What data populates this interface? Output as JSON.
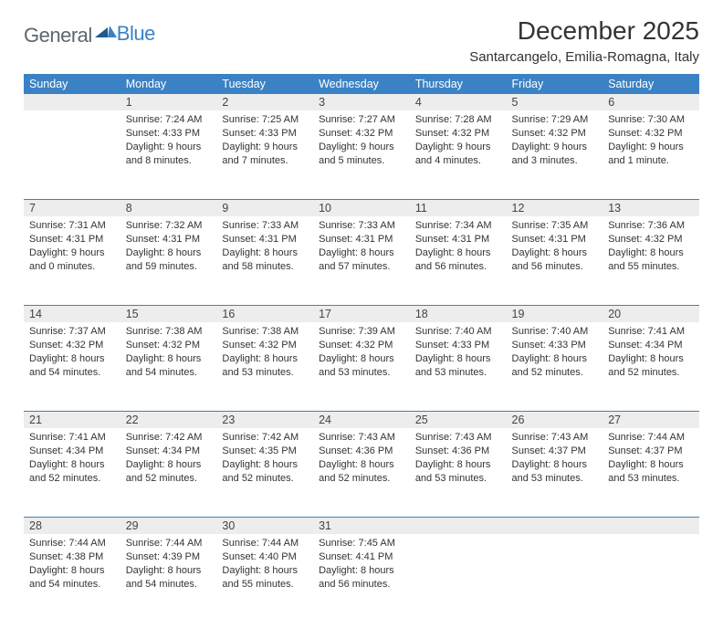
{
  "logo": {
    "word1": "General",
    "word2": "Blue"
  },
  "title": "December 2025",
  "location": "Santarcangelo, Emilia-Romagna, Italy",
  "colors": {
    "header_bg": "#3b82c4",
    "header_text": "#ffffff",
    "daynum_bg": "#ededed",
    "week_divider": "#3b82c4",
    "page_bg": "#ffffff",
    "logo_gray": "#5b6770",
    "logo_blue": "#3b82c4"
  },
  "fonts": {
    "title_size_pt": 21,
    "location_size_pt": 11,
    "header_size_pt": 9.5,
    "cell_size_pt": 8.2
  },
  "days_of_week": [
    "Sunday",
    "Monday",
    "Tuesday",
    "Wednesday",
    "Thursday",
    "Friday",
    "Saturday"
  ],
  "weeks": [
    {
      "nums": [
        "",
        "1",
        "2",
        "3",
        "4",
        "5",
        "6"
      ],
      "cells": [
        null,
        {
          "sunrise": "Sunrise: 7:24 AM",
          "sunset": "Sunset: 4:33 PM",
          "day1": "Daylight: 9 hours",
          "day2": "and 8 minutes."
        },
        {
          "sunrise": "Sunrise: 7:25 AM",
          "sunset": "Sunset: 4:33 PM",
          "day1": "Daylight: 9 hours",
          "day2": "and 7 minutes."
        },
        {
          "sunrise": "Sunrise: 7:27 AM",
          "sunset": "Sunset: 4:32 PM",
          "day1": "Daylight: 9 hours",
          "day2": "and 5 minutes."
        },
        {
          "sunrise": "Sunrise: 7:28 AM",
          "sunset": "Sunset: 4:32 PM",
          "day1": "Daylight: 9 hours",
          "day2": "and 4 minutes."
        },
        {
          "sunrise": "Sunrise: 7:29 AM",
          "sunset": "Sunset: 4:32 PM",
          "day1": "Daylight: 9 hours",
          "day2": "and 3 minutes."
        },
        {
          "sunrise": "Sunrise: 7:30 AM",
          "sunset": "Sunset: 4:32 PM",
          "day1": "Daylight: 9 hours",
          "day2": "and 1 minute."
        }
      ]
    },
    {
      "nums": [
        "7",
        "8",
        "9",
        "10",
        "11",
        "12",
        "13"
      ],
      "cells": [
        {
          "sunrise": "Sunrise: 7:31 AM",
          "sunset": "Sunset: 4:31 PM",
          "day1": "Daylight: 9 hours",
          "day2": "and 0 minutes."
        },
        {
          "sunrise": "Sunrise: 7:32 AM",
          "sunset": "Sunset: 4:31 PM",
          "day1": "Daylight: 8 hours",
          "day2": "and 59 minutes."
        },
        {
          "sunrise": "Sunrise: 7:33 AM",
          "sunset": "Sunset: 4:31 PM",
          "day1": "Daylight: 8 hours",
          "day2": "and 58 minutes."
        },
        {
          "sunrise": "Sunrise: 7:33 AM",
          "sunset": "Sunset: 4:31 PM",
          "day1": "Daylight: 8 hours",
          "day2": "and 57 minutes."
        },
        {
          "sunrise": "Sunrise: 7:34 AM",
          "sunset": "Sunset: 4:31 PM",
          "day1": "Daylight: 8 hours",
          "day2": "and 56 minutes."
        },
        {
          "sunrise": "Sunrise: 7:35 AM",
          "sunset": "Sunset: 4:31 PM",
          "day1": "Daylight: 8 hours",
          "day2": "and 56 minutes."
        },
        {
          "sunrise": "Sunrise: 7:36 AM",
          "sunset": "Sunset: 4:32 PM",
          "day1": "Daylight: 8 hours",
          "day2": "and 55 minutes."
        }
      ]
    },
    {
      "nums": [
        "14",
        "15",
        "16",
        "17",
        "18",
        "19",
        "20"
      ],
      "cells": [
        {
          "sunrise": "Sunrise: 7:37 AM",
          "sunset": "Sunset: 4:32 PM",
          "day1": "Daylight: 8 hours",
          "day2": "and 54 minutes."
        },
        {
          "sunrise": "Sunrise: 7:38 AM",
          "sunset": "Sunset: 4:32 PM",
          "day1": "Daylight: 8 hours",
          "day2": "and 54 minutes."
        },
        {
          "sunrise": "Sunrise: 7:38 AM",
          "sunset": "Sunset: 4:32 PM",
          "day1": "Daylight: 8 hours",
          "day2": "and 53 minutes."
        },
        {
          "sunrise": "Sunrise: 7:39 AM",
          "sunset": "Sunset: 4:32 PM",
          "day1": "Daylight: 8 hours",
          "day2": "and 53 minutes."
        },
        {
          "sunrise": "Sunrise: 7:40 AM",
          "sunset": "Sunset: 4:33 PM",
          "day1": "Daylight: 8 hours",
          "day2": "and 53 minutes."
        },
        {
          "sunrise": "Sunrise: 7:40 AM",
          "sunset": "Sunset: 4:33 PM",
          "day1": "Daylight: 8 hours",
          "day2": "and 52 minutes."
        },
        {
          "sunrise": "Sunrise: 7:41 AM",
          "sunset": "Sunset: 4:34 PM",
          "day1": "Daylight: 8 hours",
          "day2": "and 52 minutes."
        }
      ]
    },
    {
      "nums": [
        "21",
        "22",
        "23",
        "24",
        "25",
        "26",
        "27"
      ],
      "cells": [
        {
          "sunrise": "Sunrise: 7:41 AM",
          "sunset": "Sunset: 4:34 PM",
          "day1": "Daylight: 8 hours",
          "day2": "and 52 minutes."
        },
        {
          "sunrise": "Sunrise: 7:42 AM",
          "sunset": "Sunset: 4:34 PM",
          "day1": "Daylight: 8 hours",
          "day2": "and 52 minutes."
        },
        {
          "sunrise": "Sunrise: 7:42 AM",
          "sunset": "Sunset: 4:35 PM",
          "day1": "Daylight: 8 hours",
          "day2": "and 52 minutes."
        },
        {
          "sunrise": "Sunrise: 7:43 AM",
          "sunset": "Sunset: 4:36 PM",
          "day1": "Daylight: 8 hours",
          "day2": "and 52 minutes."
        },
        {
          "sunrise": "Sunrise: 7:43 AM",
          "sunset": "Sunset: 4:36 PM",
          "day1": "Daylight: 8 hours",
          "day2": "and 53 minutes."
        },
        {
          "sunrise": "Sunrise: 7:43 AM",
          "sunset": "Sunset: 4:37 PM",
          "day1": "Daylight: 8 hours",
          "day2": "and 53 minutes."
        },
        {
          "sunrise": "Sunrise: 7:44 AM",
          "sunset": "Sunset: 4:37 PM",
          "day1": "Daylight: 8 hours",
          "day2": "and 53 minutes."
        }
      ]
    },
    {
      "nums": [
        "28",
        "29",
        "30",
        "31",
        "",
        "",
        ""
      ],
      "cells": [
        {
          "sunrise": "Sunrise: 7:44 AM",
          "sunset": "Sunset: 4:38 PM",
          "day1": "Daylight: 8 hours",
          "day2": "and 54 minutes."
        },
        {
          "sunrise": "Sunrise: 7:44 AM",
          "sunset": "Sunset: 4:39 PM",
          "day1": "Daylight: 8 hours",
          "day2": "and 54 minutes."
        },
        {
          "sunrise": "Sunrise: 7:44 AM",
          "sunset": "Sunset: 4:40 PM",
          "day1": "Daylight: 8 hours",
          "day2": "and 55 minutes."
        },
        {
          "sunrise": "Sunrise: 7:45 AM",
          "sunset": "Sunset: 4:41 PM",
          "day1": "Daylight: 8 hours",
          "day2": "and 56 minutes."
        },
        null,
        null,
        null
      ]
    }
  ]
}
